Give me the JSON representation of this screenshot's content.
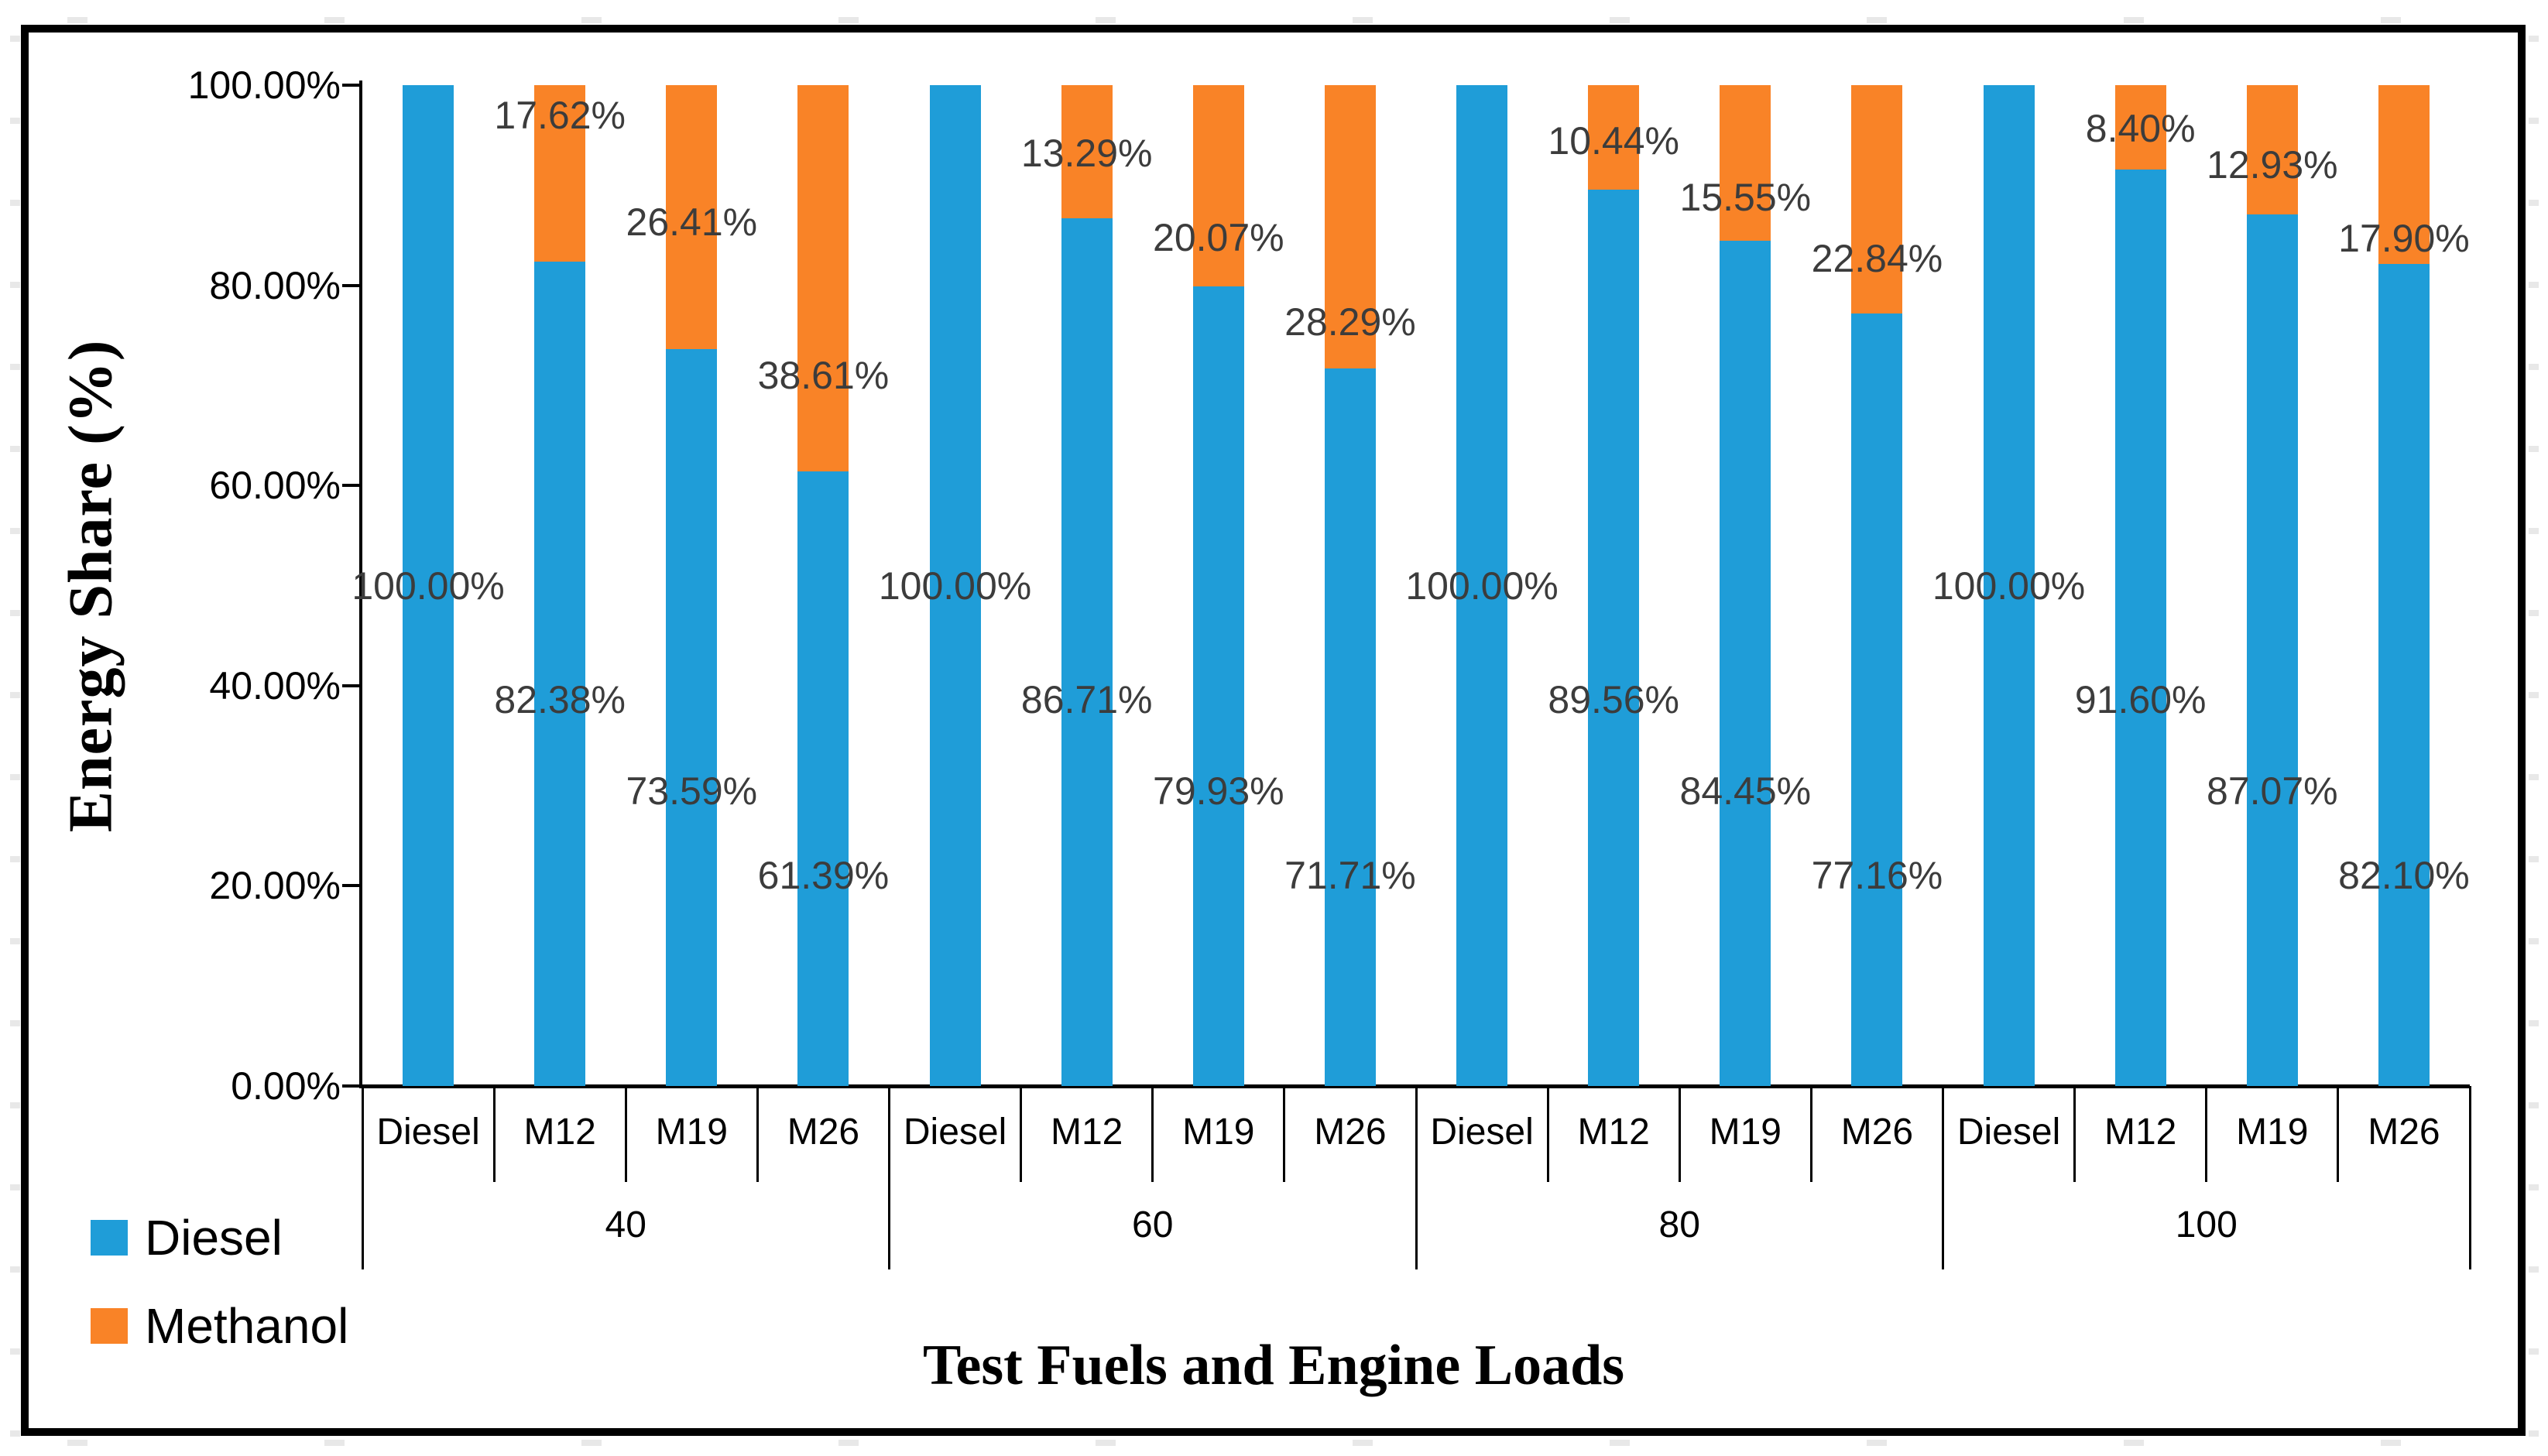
{
  "chart_data": {
    "type": "bar",
    "stacked": true,
    "title": "",
    "xlabel": "Test Fuels and Engine Loads",
    "ylabel": "Energy Share (%)",
    "ylim": [
      0,
      100
    ],
    "grid": false,
    "legend_position": "bottom-left",
    "ytick_labels": [
      "100.00%",
      "80.00%",
      "60.00%",
      "40.00%",
      "20.00%",
      "0.00%"
    ],
    "series_colors": {
      "diesel": "#1F9DD8",
      "methanol": "#F98327"
    },
    "legend": [
      {
        "name": "Diesel",
        "color": "#1F9DD8"
      },
      {
        "name": "Methanol",
        "color": "#F98327"
      }
    ],
    "groups": [
      {
        "load": "40",
        "bars": [
          {
            "fuel": "Diesel",
            "diesel": 100.0,
            "methanol": 0.0,
            "diesel_label": "100.00%",
            "methanol_label": null
          },
          {
            "fuel": "M12",
            "diesel": 82.38,
            "methanol": 17.62,
            "diesel_label": "82.38%",
            "methanol_label": "17.62%"
          },
          {
            "fuel": "M19",
            "diesel": 73.59,
            "methanol": 26.41,
            "diesel_label": "73.59%",
            "methanol_label": "26.41%"
          },
          {
            "fuel": "M26",
            "diesel": 61.39,
            "methanol": 38.61,
            "diesel_label": "61.39%",
            "methanol_label": "38.61%"
          }
        ]
      },
      {
        "load": "60",
        "bars": [
          {
            "fuel": "Diesel",
            "diesel": 100.0,
            "methanol": 0.0,
            "diesel_label": "100.00%",
            "methanol_label": null
          },
          {
            "fuel": "M12",
            "diesel": 86.71,
            "methanol": 13.29,
            "diesel_label": "86.71%",
            "methanol_label": "13.29%"
          },
          {
            "fuel": "M19",
            "diesel": 79.93,
            "methanol": 20.07,
            "diesel_label": "79.93%",
            "methanol_label": "20.07%"
          },
          {
            "fuel": "M26",
            "diesel": 71.71,
            "methanol": 28.29,
            "diesel_label": "71.71%",
            "methanol_label": "28.29%"
          }
        ]
      },
      {
        "load": "80",
        "bars": [
          {
            "fuel": "Diesel",
            "diesel": 100.0,
            "methanol": 0.0,
            "diesel_label": "100.00%",
            "methanol_label": null
          },
          {
            "fuel": "M12",
            "diesel": 89.56,
            "methanol": 10.44,
            "diesel_label": "89.56%",
            "methanol_label": "10.44%"
          },
          {
            "fuel": "M19",
            "diesel": 84.45,
            "methanol": 15.55,
            "diesel_label": "84.45%",
            "methanol_label": "15.55%"
          },
          {
            "fuel": "M26",
            "diesel": 77.16,
            "methanol": 22.84,
            "diesel_label": "77.16%",
            "methanol_label": "22.84%"
          }
        ]
      },
      {
        "load": "100",
        "bars": [
          {
            "fuel": "Diesel",
            "diesel": 100.0,
            "methanol": 0.0,
            "diesel_label": "100.00%",
            "methanol_label": null
          },
          {
            "fuel": "M12",
            "diesel": 91.6,
            "methanol": 8.4,
            "diesel_label": "91.60%",
            "methanol_label": "8.40%"
          },
          {
            "fuel": "M19",
            "diesel": 87.07,
            "methanol": 12.93,
            "diesel_label": "87.07%",
            "methanol_label": "12.93%"
          },
          {
            "fuel": "M26",
            "diesel": 82.1,
            "methanol": 17.9,
            "diesel_label": "82.10%",
            "methanol_label": "17.90%"
          }
        ]
      }
    ]
  }
}
